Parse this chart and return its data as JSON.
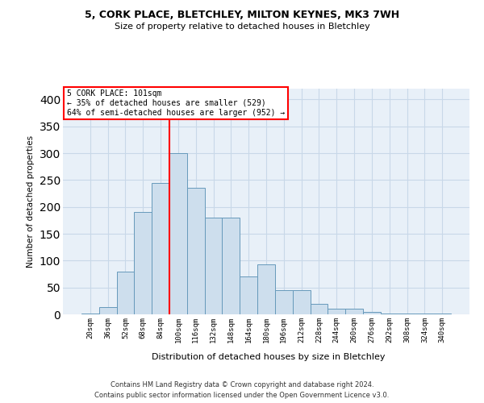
{
  "title1": "5, CORK PLACE, BLETCHLEY, MILTON KEYNES, MK3 7WH",
  "title2": "Size of property relative to detached houses in Bletchley",
  "xlabel": "Distribution of detached houses by size in Bletchley",
  "ylabel": "Number of detached properties",
  "bar_color": "#cddeed",
  "bar_edge_color": "#6699bb",
  "categories": [
    "20sqm",
    "36sqm",
    "52sqm",
    "68sqm",
    "84sqm",
    "100sqm",
    "116sqm",
    "132sqm",
    "148sqm",
    "164sqm",
    "180sqm",
    "196sqm",
    "212sqm",
    "228sqm",
    "244sqm",
    "260sqm",
    "276sqm",
    "292sqm",
    "308sqm",
    "324sqm",
    "340sqm"
  ],
  "values": [
    2,
    13,
    80,
    190,
    245,
    300,
    235,
    180,
    180,
    70,
    93,
    45,
    45,
    20,
    10,
    10,
    5,
    2,
    1,
    1,
    1
  ],
  "annotation_line1": "5 CORK PLACE: 101sqm",
  "annotation_line2": "← 35% of detached houses are smaller (529)",
  "annotation_line3": "64% of semi-detached houses are larger (952) →",
  "vline_x": 4.5,
  "ylim": [
    0,
    420
  ],
  "yticks": [
    0,
    50,
    100,
    150,
    200,
    250,
    300,
    350,
    400
  ],
  "grid_color": "#c8d8e8",
  "bg_color": "#e8f0f8",
  "footer1": "Contains HM Land Registry data © Crown copyright and database right 2024.",
  "footer2": "Contains public sector information licensed under the Open Government Licence v3.0."
}
